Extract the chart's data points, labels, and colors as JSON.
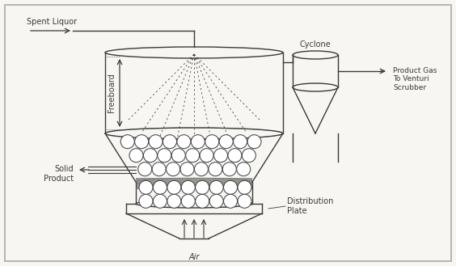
{
  "bg_color": "#f0ede8",
  "line_color": "#3a3a3a",
  "labels": {
    "spent_liquor": "Spent Liquor",
    "freeboard": "Freeboard",
    "solid_product": "Solid\nProduct",
    "air": "Air",
    "cyclone": "Cyclone",
    "product_gas": "Product Gas\nTo Venturi\nScrubber",
    "distribution_plate": "Distribution\nPlate"
  },
  "font_size": 7.0,
  "canvas_color": "#f8f6f2",
  "border_color": "#aaaaaa"
}
